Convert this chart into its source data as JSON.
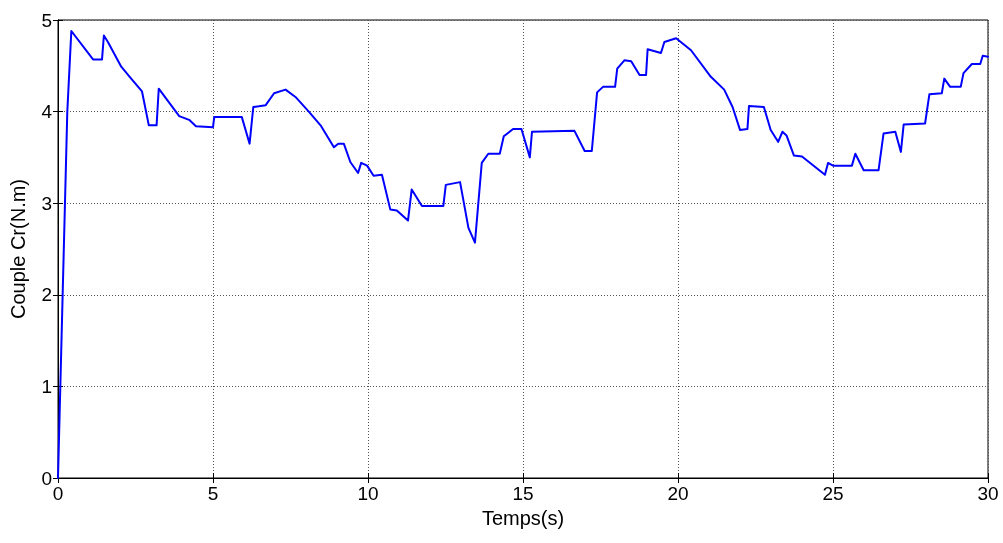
{
  "chart_data": {
    "type": "line",
    "xlabel": "Temps(s)",
    "ylabel": "Couple Cr(N.m)",
    "xlim": [
      0,
      30
    ],
    "xticks": [
      0,
      5,
      10,
      15,
      20,
      25,
      30
    ],
    "ylim": [
      0,
      5
    ],
    "yticks": [
      0,
      1,
      2,
      3,
      4,
      5
    ],
    "grid": true,
    "marker": "none",
    "line_style": "solid",
    "series": [
      {
        "color": "#0000ff",
        "x": [
          0,
          0.15,
          0.3,
          0.43,
          1.13,
          1.42,
          1.48,
          1.61,
          2.04,
          2.36,
          2.71,
          2.93,
          3.18,
          3.25,
          3.91,
          4.23,
          4.45,
          5.0,
          5.04,
          5.93,
          6.18,
          6.3,
          6.7,
          6.97,
          7.34,
          7.66,
          8.09,
          8.47,
          8.9,
          9.04,
          9.22,
          9.43,
          9.68,
          9.78,
          9.97,
          10.18,
          10.45,
          10.72,
          10.93,
          11.29,
          11.41,
          11.74,
          12.43,
          12.51,
          12.97,
          13.24,
          13.45,
          13.67,
          13.88,
          14.25,
          14.38,
          14.68,
          14.95,
          15.22,
          15.29,
          16.66,
          16.99,
          17.22,
          17.39,
          17.58,
          17.97,
          18.04,
          18.27,
          18.49,
          18.76,
          18.97,
          19.02,
          19.45,
          19.56,
          19.94,
          20.42,
          21.06,
          21.49,
          21.76,
          22.0,
          22.24,
          22.29,
          22.77,
          22.99,
          23.23,
          23.37,
          23.5,
          23.74,
          24.0,
          24.74,
          24.84,
          25.0,
          25.61,
          25.72,
          25.99,
          26.47,
          26.63,
          27.01,
          27.19,
          27.28,
          27.97,
          28.11,
          28.51,
          28.59,
          28.78,
          29.12,
          29.21,
          29.48,
          29.75,
          29.83,
          30
        ],
        "values": [
          0,
          2.0,
          4.0,
          4.88,
          4.57,
          4.57,
          4.83,
          4.76,
          4.49,
          4.36,
          4.22,
          3.85,
          3.85,
          4.25,
          3.95,
          3.91,
          3.84,
          3.83,
          3.94,
          3.94,
          3.65,
          4.05,
          4.07,
          4.2,
          4.24,
          4.16,
          4.0,
          3.85,
          3.61,
          3.65,
          3.65,
          3.45,
          3.33,
          3.44,
          3.41,
          3.3,
          3.31,
          2.93,
          2.92,
          2.81,
          3.15,
          2.97,
          2.97,
          3.2,
          3.23,
          2.73,
          2.57,
          3.44,
          3.54,
          3.54,
          3.73,
          3.81,
          3.81,
          3.5,
          3.78,
          3.79,
          3.57,
          3.57,
          4.21,
          4.27,
          4.27,
          4.47,
          4.56,
          4.55,
          4.4,
          4.4,
          4.68,
          4.64,
          4.76,
          4.8,
          4.67,
          4.38,
          4.24,
          4.05,
          3.8,
          3.81,
          4.06,
          4.05,
          3.8,
          3.67,
          3.78,
          3.74,
          3.52,
          3.51,
          3.31,
          3.44,
          3.41,
          3.41,
          3.54,
          3.36,
          3.36,
          3.76,
          3.78,
          3.56,
          3.86,
          3.87,
          4.19,
          4.2,
          4.36,
          4.27,
          4.27,
          4.42,
          4.52,
          4.52,
          4.61,
          4.6
        ]
      }
    ]
  }
}
